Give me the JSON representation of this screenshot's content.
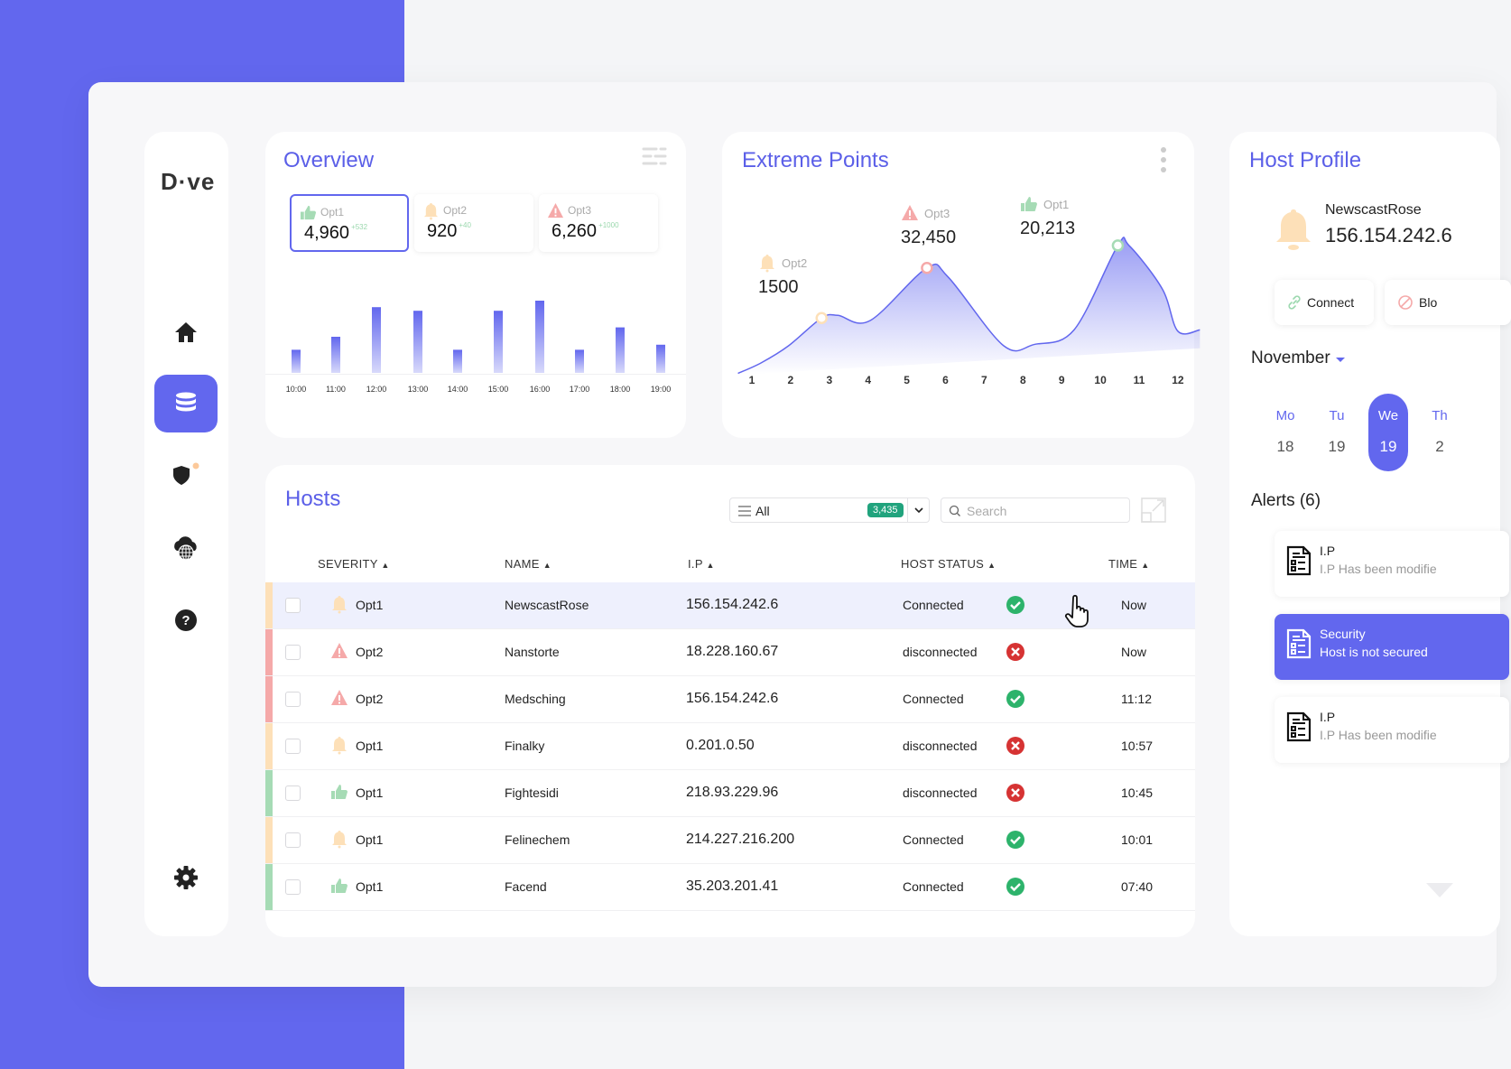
{
  "colors": {
    "accent": "#6267ee",
    "opt1": "#a6dbb5",
    "opt2": "#fde0b8",
    "opt3": "#f5a9a9",
    "connected": "#2db36b",
    "disconnected": "#d63333",
    "badge": "#21a37d"
  },
  "sidebar": {
    "logo": "D·ve",
    "items": [
      {
        "icon": "home-icon"
      },
      {
        "icon": "database-icon",
        "active": true
      },
      {
        "icon": "shield-icon",
        "notification": true
      },
      {
        "icon": "cloud-globe-icon"
      },
      {
        "icon": "help-icon"
      },
      {
        "icon": "gear-icon"
      }
    ]
  },
  "overview": {
    "title": "Overview",
    "stats": [
      {
        "icon": "thumb",
        "label": "Opt1",
        "value": "4,960",
        "delta": "+532",
        "selected": true
      },
      {
        "icon": "bell",
        "label": "Opt2",
        "value": "920",
        "delta": "+40"
      },
      {
        "icon": "warn",
        "label": "Opt3",
        "value": "6,260",
        "delta": "+1000"
      }
    ]
  },
  "extreme": {
    "title": "Extreme Points",
    "annotations": [
      {
        "icon": "bell",
        "label": "Opt2",
        "value": "1500"
      },
      {
        "icon": "warn",
        "label": "Opt3",
        "value": "32,450"
      },
      {
        "icon": "thumb",
        "label": "Opt1",
        "value": "20,213"
      }
    ]
  },
  "chart_data": [
    {
      "type": "bar",
      "categories": [
        "10:00",
        "11:00",
        "12:00",
        "13:00",
        "14:00",
        "15:00",
        "16:00",
        "17:00",
        "18:00",
        "19:00"
      ],
      "values": [
        32,
        50,
        91,
        86,
        32,
        86,
        100,
        32,
        63,
        39
      ],
      "ylim": [
        0,
        100
      ],
      "grid": false
    },
    {
      "type": "area",
      "x_ticks": [
        "1",
        "2",
        "3",
        "4",
        "5",
        "6",
        "7",
        "8",
        "9",
        "10",
        "11",
        "12"
      ],
      "points": [
        [
          0.64,
          1
        ],
        [
          1.24,
          9
        ],
        [
          1.95,
          22
        ],
        [
          2.8,
          43
        ],
        [
          3.22,
          45
        ],
        [
          4.05,
          41
        ],
        [
          5.52,
          81
        ],
        [
          6.07,
          74
        ],
        [
          7.5,
          22
        ],
        [
          8.3,
          23
        ],
        [
          9.32,
          34
        ],
        [
          10.45,
          98
        ],
        [
          10.74,
          98
        ],
        [
          11.6,
          65
        ],
        [
          12.0,
          33
        ],
        [
          12.57,
          34
        ]
      ],
      "markers": [
        {
          "x": 2.8,
          "y": 43,
          "label": "Opt2",
          "value": "1500"
        },
        {
          "x": 5.52,
          "y": 81,
          "label": "Opt3",
          "value": "32,450"
        },
        {
          "x": 10.45,
          "y": 98,
          "label": "Opt1",
          "value": "20,213"
        }
      ],
      "ylim": [
        0,
        100
      ],
      "grid": false
    }
  ],
  "hosts": {
    "title": "Hosts",
    "filter": {
      "value": "All",
      "count": "3,435"
    },
    "search": {
      "placeholder": "Search"
    },
    "columns": [
      "SEVERITY",
      "NAME",
      "I.P",
      "HOST STATUS",
      "TIME"
    ],
    "rows": [
      {
        "sev": "bell",
        "opt": "Opt1",
        "name": "NewscastRose",
        "ip": "156.154.242.6",
        "status": "Connected",
        "ok": true,
        "time": "Now",
        "highlight": true
      },
      {
        "sev": "warn",
        "opt": "Opt2",
        "name": "Nanstorte",
        "ip": "18.228.160.67",
        "status": "disconnected",
        "ok": false,
        "time": "Now"
      },
      {
        "sev": "warn",
        "opt": "Opt2",
        "name": "Medsching",
        "ip": "156.154.242.6",
        "status": "Connected",
        "ok": true,
        "time": "11:12"
      },
      {
        "sev": "bell",
        "opt": "Opt1",
        "name": "Finalky",
        "ip": "0.201.0.50",
        "status": "disconnected",
        "ok": false,
        "time": "10:57"
      },
      {
        "sev": "thumb",
        "opt": "Opt1",
        "name": "Fightesidi",
        "ip": "218.93.229.96",
        "status": "disconnected",
        "ok": false,
        "time": "10:45"
      },
      {
        "sev": "bell",
        "opt": "Opt1",
        "name": "Felinechem",
        "ip": "214.227.216.200",
        "status": "Connected",
        "ok": true,
        "time": "10:01"
      },
      {
        "sev": "thumb",
        "opt": "Opt1",
        "name": "Facend",
        "ip": "35.203.201.41",
        "status": "Connected",
        "ok": true,
        "time": "07:40"
      }
    ]
  },
  "profile": {
    "title": "Host Profile",
    "name": "NewscastRose",
    "ip": "156.154.242.6",
    "connect": "Connect",
    "block": "Blo",
    "month": "November",
    "days": [
      {
        "d": "Mo",
        "n": "18"
      },
      {
        "d": "Tu",
        "n": "19"
      },
      {
        "d": "We",
        "n": "19",
        "selected": true
      },
      {
        "d": "Th",
        "n": "2"
      }
    ],
    "alerts_title": "Alerts (6)",
    "alerts": [
      {
        "title": "I.P",
        "text": "I.P Has been modifie"
      },
      {
        "title": "Security",
        "text": "Host is not secured",
        "selected": true
      },
      {
        "title": "I.P",
        "text": "I.P Has been modifie"
      }
    ]
  }
}
